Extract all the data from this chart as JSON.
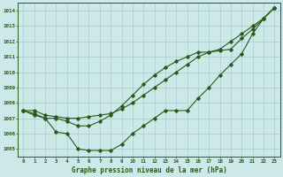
{
  "title": "Graphe pression niveau de la mer (hPa)",
  "bg_color": "#cce8e8",
  "grid_color": "#aacccc",
  "line_color": "#2a5a1a",
  "xlim": [
    -0.5,
    23.5
  ],
  "ylim": [
    1004.5,
    1014.5
  ],
  "yticks": [
    1005,
    1006,
    1007,
    1008,
    1009,
    1010,
    1011,
    1012,
    1013,
    1014
  ],
  "xticks": [
    0,
    1,
    2,
    3,
    4,
    5,
    6,
    7,
    8,
    9,
    10,
    11,
    12,
    13,
    14,
    15,
    16,
    17,
    18,
    19,
    20,
    21,
    22,
    23
  ],
  "series1": [
    1007.5,
    1007.5,
    1007.2,
    1007.1,
    1007.0,
    1007.0,
    1007.1,
    1007.2,
    1007.3,
    1007.6,
    1008.0,
    1008.5,
    1009.0,
    1009.5,
    1010.0,
    1010.5,
    1011.0,
    1011.3,
    1011.5,
    1012.0,
    1012.5,
    1013.0,
    1013.5,
    1014.2
  ],
  "series2": [
    1007.5,
    1007.3,
    1007.0,
    1007.0,
    1006.8,
    1006.5,
    1006.5,
    1006.8,
    1007.2,
    1007.8,
    1008.5,
    1009.2,
    1009.8,
    1010.3,
    1010.7,
    1011.0,
    1011.3,
    1011.3,
    1011.4,
    1011.5,
    1012.2,
    1012.8,
    1013.5,
    1014.2
  ],
  "series3": [
    1007.5,
    1007.2,
    1007.0,
    1006.1,
    1006.0,
    1005.0,
    1004.9,
    1004.9,
    1004.9,
    1005.3,
    1006.0,
    1006.5,
    1007.0,
    1007.5,
    1007.5,
    1007.5,
    1008.3,
    1009.0,
    1009.8,
    1010.5,
    1011.2,
    1012.5,
    1013.5,
    1014.2
  ]
}
